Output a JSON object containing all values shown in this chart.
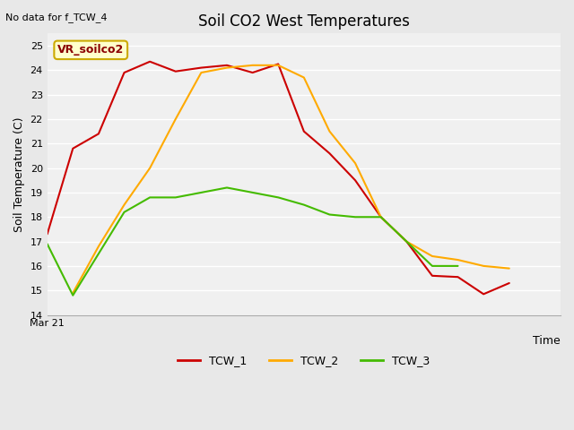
{
  "title": "Soil CO2 West Temperatures",
  "xlabel": "Time",
  "ylabel": "Soil Temperature (C)",
  "no_data_text": "No data for f_TCW_4",
  "vr_label": "VR_soilco2",
  "ylim": [
    14.0,
    25.5
  ],
  "yticks": [
    14.0,
    15.0,
    16.0,
    17.0,
    18.0,
    19.0,
    20.0,
    21.0,
    22.0,
    23.0,
    24.0,
    25.0
  ],
  "xstart_label": "Mar 21",
  "fig_bg_color": "#e8e8e8",
  "plot_bg_color": "#f0f0f0",
  "grid_color": "#ffffff",
  "tcw1_color": "#cc0000",
  "tcw2_color": "#ffaa00",
  "tcw3_color": "#44bb00",
  "x": [
    0,
    1,
    2,
    3,
    4,
    5,
    6,
    7,
    8,
    9,
    10,
    11,
    12,
    13,
    14,
    15,
    16,
    17,
    18,
    19,
    20
  ],
  "TCW_1": [
    17.3,
    20.8,
    21.4,
    23.9,
    24.35,
    23.95,
    24.1,
    24.2,
    23.9,
    24.25,
    21.5,
    20.6,
    19.5,
    18.0,
    17.0,
    15.6,
    15.55,
    14.85,
    15.3,
    null,
    null
  ],
  "TCW_2": [
    null,
    14.9,
    16.8,
    18.5,
    20.0,
    22.0,
    23.9,
    24.1,
    24.2,
    24.2,
    23.7,
    21.5,
    20.2,
    18.0,
    17.0,
    16.4,
    16.25,
    16.0,
    15.9,
    null,
    null
  ],
  "TCW_3": [
    16.9,
    14.8,
    16.5,
    18.2,
    18.8,
    18.8,
    19.0,
    19.2,
    19.0,
    18.8,
    18.5,
    18.1,
    18.0,
    18.0,
    17.0,
    16.0,
    16.0,
    null,
    null,
    null,
    null
  ]
}
